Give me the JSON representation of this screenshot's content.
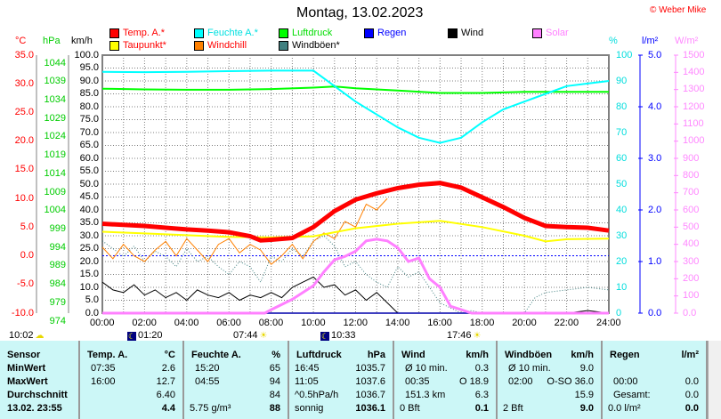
{
  "title": "Montag, 13.02.2023",
  "copyright": "© Weber Mike",
  "legend": [
    {
      "label": "Temp. A.*",
      "color": "#ff0000",
      "text": "#ff0000"
    },
    {
      "label": "Feuchte A.*",
      "color": "#00ffff",
      "text": "#00e0e0"
    },
    {
      "label": "Luftdruck",
      "color": "#00ff00",
      "text": "#00dd00"
    },
    {
      "label": "Regen",
      "color": "#0000ff",
      "text": "#0000ff"
    },
    {
      "label": "Wind",
      "color": "#000000",
      "text": "#000000"
    },
    {
      "label": "Solar",
      "color": "#ff80ff",
      "text": "#ff80ff"
    },
    {
      "label": "Taupunkt*",
      "color": "#ffff00",
      "text": "#ff0000"
    },
    {
      "label": "Windchill",
      "color": "#ff8000",
      "text": "#ff0000"
    },
    {
      "label": "Windböen*",
      "color": "#408080",
      "text": "#000000"
    }
  ],
  "axes": {
    "celsius": {
      "unit": "°C",
      "ticks": [
        "35.0",
        "30.0",
        "25.0",
        "20.0",
        "15.0",
        "10.0",
        "5.0",
        "0.0",
        "-5.0",
        "-10.0"
      ]
    },
    "hpa": {
      "unit": "hPa",
      "ticks": [
        "1044",
        "1039",
        "1034",
        "1029",
        "1024",
        "1019",
        "1014",
        "1009",
        "1004",
        "999",
        "994",
        "989",
        "984",
        "979",
        "974"
      ]
    },
    "kmh": {
      "unit": "km/h",
      "ticks": [
        "100.0",
        "95.0",
        "90.0",
        "85.0",
        "80.0",
        "75.0",
        "70.0",
        "65.0",
        "60.0",
        "55.0",
        "50.0",
        "45.0",
        "40.0",
        "35.0",
        "30.0",
        "25.0",
        "20.0",
        "15.0",
        "10.0",
        "5.0",
        "0.0"
      ]
    },
    "percent": {
      "unit": "%",
      "ticks": [
        "100",
        "90",
        "80",
        "70",
        "60",
        "50",
        "40",
        "30",
        "20",
        "10",
        "0"
      ]
    },
    "rain": {
      "unit": "l/m²",
      "ticks": [
        "5.0",
        "4.0",
        "3.0",
        "2.0",
        "1.0",
        "0.0"
      ]
    },
    "solar": {
      "unit": "W/m²",
      "ticks": [
        "1500",
        "1400",
        "1300",
        "1200",
        "1100",
        "1000",
        "900",
        "800",
        "700",
        "600",
        "500",
        "400",
        "300",
        "200",
        "100",
        "0.0"
      ]
    },
    "x": {
      "ticks": [
        "00:00",
        "02:00",
        "04:00",
        "06:00",
        "08:00",
        "10:00",
        "12:00",
        "14:00",
        "16:00",
        "18:00",
        "20:00",
        "22:00",
        "24:00"
      ]
    }
  },
  "astro": [
    {
      "time": "10:02",
      "icon": "cloud-sun-icon"
    },
    {
      "time": "01:20",
      "icon": "moonset-icon"
    },
    {
      "time": "07:44",
      "icon": "sunrise-icon"
    },
    {
      "time": "10:33",
      "icon": "moonrise-icon"
    },
    {
      "time": "17:46",
      "icon": "sunset-icon"
    }
  ],
  "chart_data": {
    "type": "line",
    "title": "Montag, 13.02.2023",
    "x_hours_step": 0.5,
    "series": [
      {
        "name": "Temp. A.",
        "unit": "°C",
        "hours": [
          0,
          1,
          2,
          3,
          4,
          5,
          6,
          7,
          7.5,
          8,
          9,
          10,
          11,
          12,
          13,
          14,
          15,
          16,
          17,
          18,
          19,
          20,
          21,
          22,
          23,
          24
        ],
        "values": [
          5.6,
          5.4,
          5.2,
          4.9,
          4.6,
          4.4,
          4.1,
          3.4,
          2.7,
          2.8,
          3.1,
          5.0,
          7.8,
          9.8,
          10.9,
          11.8,
          12.4,
          12.7,
          11.9,
          10.2,
          8.5,
          6.6,
          5.2,
          5.0,
          4.9,
          4.4
        ]
      },
      {
        "name": "Taupunkt",
        "unit": "°C",
        "hours": [
          0,
          2,
          4,
          6,
          8,
          10,
          12,
          14,
          16,
          18,
          20,
          21,
          22,
          24
        ],
        "values": [
          4.2,
          3.9,
          3.6,
          3.3,
          3.2,
          3.4,
          4.8,
          5.6,
          6.1,
          5.0,
          3.5,
          2.5,
          2.9,
          3.0
        ]
      },
      {
        "name": "Feuchte A.",
        "unit": "%",
        "hours": [
          0,
          2,
          4,
          6,
          8,
          9,
          10,
          10.5,
          11,
          12,
          13,
          14,
          15,
          16,
          17,
          18,
          19,
          20,
          21,
          22,
          23,
          24
        ],
        "values": [
          93.5,
          93.4,
          93.5,
          93.8,
          94,
          94,
          94,
          91,
          88,
          82,
          77,
          72,
          68,
          66,
          68,
          74,
          79,
          82,
          85,
          88,
          89,
          90
        ]
      },
      {
        "name": "Luftdruck",
        "unit": "hPa",
        "hours": [
          0,
          2,
          4,
          6,
          8,
          10,
          11,
          12,
          14,
          16,
          18,
          20,
          22,
          24
        ],
        "values": [
          1037.0,
          1036.8,
          1036.7,
          1036.7,
          1036.9,
          1037.3,
          1037.6,
          1037.1,
          1036.5,
          1035.8,
          1035.8,
          1036.1,
          1036.1,
          1036.1
        ]
      },
      {
        "name": "Windchill",
        "unit": "°C",
        "hours": [
          0,
          0.5,
          1,
          1.5,
          2,
          2.5,
          3,
          3.5,
          4,
          4.5,
          5,
          5.5,
          6,
          6.5,
          7,
          7.5,
          8,
          8.5,
          9,
          9.5,
          10,
          10.5,
          11,
          11.5,
          12,
          12.5,
          13,
          13.5
        ],
        "values": [
          1.5,
          -0.5,
          2,
          0,
          -1,
          1,
          2.5,
          0,
          3,
          1,
          -1,
          2,
          3,
          0.5,
          2,
          1,
          -1.5,
          0,
          2,
          -0.5,
          2.5,
          4,
          3,
          6,
          5,
          9,
          8,
          10
        ]
      },
      {
        "name": "Wind",
        "unit": "km/h",
        "hours": [
          0,
          0.5,
          1,
          1.5,
          2,
          2.5,
          3,
          3.5,
          4,
          4.5,
          5,
          5.5,
          6,
          6.5,
          7,
          7.5,
          8,
          8.5,
          9,
          9.5,
          10,
          10.5,
          11,
          11.5,
          12,
          12.5,
          13,
          13.5,
          14,
          16,
          18,
          20,
          22,
          23,
          24
        ],
        "values": [
          12,
          9,
          8,
          11,
          7,
          9,
          6,
          8,
          5,
          9,
          7,
          6,
          8,
          5,
          7,
          6,
          8,
          6,
          10,
          12,
          14,
          10,
          11,
          7,
          9,
          5,
          8,
          4,
          0,
          0,
          0,
          0,
          0,
          1,
          0
        ]
      },
      {
        "name": "Windböen",
        "unit": "km/h",
        "hours": [
          0,
          0.5,
          1,
          1.5,
          2,
          2.5,
          3,
          3.5,
          4,
          4.5,
          5,
          5.5,
          6,
          6.5,
          7,
          7.5,
          8,
          8.5,
          9,
          9.5,
          10,
          10.5,
          11,
          11.5,
          12,
          12.5,
          13,
          13.5,
          14,
          14.5,
          15,
          15.5,
          16,
          16.5,
          17,
          17.5,
          18,
          20,
          20.5,
          21,
          22,
          23,
          24
        ],
        "values": [
          28,
          25,
          22,
          26,
          20,
          24,
          22,
          18,
          25,
          20,
          22,
          18,
          15,
          20,
          18,
          12,
          22,
          20,
          25,
          22,
          28,
          30,
          26,
          18,
          20,
          15,
          12,
          10,
          18,
          14,
          16,
          10,
          4,
          2,
          0,
          1,
          0,
          0,
          6,
          8,
          9,
          10,
          9
        ]
      },
      {
        "name": "Solar",
        "unit": "W/m²",
        "hours": [
          0,
          7.7,
          8,
          9,
          10,
          10.5,
          11,
          11.5,
          12,
          12.5,
          13,
          13.5,
          14,
          14.5,
          15,
          15.5,
          16,
          16.5,
          17,
          17.5,
          24
        ],
        "values": [
          0,
          0,
          20,
          80,
          160,
          240,
          310,
          330,
          360,
          420,
          430,
          420,
          380,
          300,
          320,
          200,
          150,
          40,
          20,
          0,
          0
        ]
      },
      {
        "name": "Regen",
        "unit": "l/m²",
        "hours": [
          0,
          24
        ],
        "values": [
          0,
          0
        ]
      }
    ]
  },
  "table": {
    "sensor": {
      "header": "Sensor",
      "rows": [
        "MinWert",
        "MaxWert",
        "Durchschnitt",
        "13.02. 23:55"
      ]
    },
    "temp": {
      "header": "Temp. A.",
      "unit": "°C",
      "rows": [
        [
          "07:35",
          "2.6"
        ],
        [
          "16:00",
          "12.7"
        ],
        [
          "",
          "6.40"
        ],
        [
          "",
          "4.4"
        ]
      ]
    },
    "humidity": {
      "header": "Feuchte A.",
      "unit": "%",
      "rows": [
        [
          "15:20",
          "65"
        ],
        [
          "04:55",
          "94"
        ],
        [
          "",
          "84"
        ],
        [
          "5.75 g/m³",
          "88"
        ]
      ]
    },
    "pressure": {
      "header": "Luftdruck",
      "unit": "hPa",
      "rows": [
        [
          "16:45",
          "1035.7"
        ],
        [
          "11:05",
          "1037.6"
        ],
        [
          "^0.5hPa/h",
          "1036.7"
        ],
        [
          "sonnig",
          "1036.1"
        ]
      ]
    },
    "wind": {
      "header": "Wind",
      "unit": "km/h",
      "rows": [
        [
          "Ø 10 min.",
          "0.3"
        ],
        [
          "00:35",
          "O 18.9"
        ],
        [
          "151.3 km",
          "6.3"
        ],
        [
          "0 Bft",
          "0.1"
        ]
      ]
    },
    "gust": {
      "header": "Windböen",
      "unit": "km/h",
      "rows": [
        [
          "Ø 10 min.",
          "9.0"
        ],
        [
          "02:00",
          "O-SO 36.0"
        ],
        [
          "",
          "15.9"
        ],
        [
          "2 Bft",
          "9.0"
        ]
      ]
    },
    "rain": {
      "header": "Regen",
      "unit": "l/m²",
      "rows": [
        [
          "",
          ""
        ],
        [
          "00:00",
          "0.0"
        ],
        [
          "Gesamt:",
          "0.0"
        ],
        [
          "0.0 l/m²",
          "0.0"
        ]
      ]
    }
  }
}
